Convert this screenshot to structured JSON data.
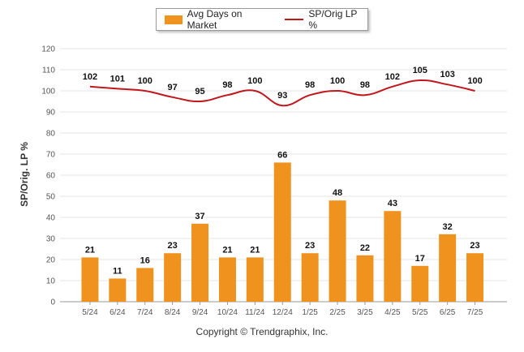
{
  "legend": {
    "bar_label": "Avg Days on Market",
    "line_label": "SP/Orig LP %"
  },
  "y_axis_label": "SP/Orig. LP %",
  "copyright": "Copyright © Trendgraphix, Inc.",
  "colors": {
    "bar": "#F0921E",
    "line": "#C0161C",
    "grid": "#e6e6e6",
    "axis": "#999999"
  },
  "chart_data": {
    "type": "bar",
    "categories": [
      "5/24",
      "6/24",
      "7/24",
      "8/24",
      "9/24",
      "10/24",
      "11/24",
      "12/24",
      "1/25",
      "2/25",
      "3/25",
      "4/25",
      "5/25",
      "6/25",
      "7/25"
    ],
    "series": [
      {
        "name": "Avg Days on Market",
        "type": "bar",
        "values": [
          21,
          11,
          16,
          23,
          37,
          21,
          21,
          66,
          23,
          48,
          22,
          43,
          17,
          32,
          23
        ]
      },
      {
        "name": "SP/Orig LP %",
        "type": "line",
        "values": [
          102,
          101,
          100,
          97,
          95,
          98,
          100,
          93,
          98,
          100,
          98,
          102,
          105,
          103,
          100
        ]
      }
    ],
    "yticks": [
      0,
      10,
      20,
      30,
      40,
      50,
      60,
      70,
      80,
      90,
      100,
      110,
      120
    ],
    "ylabel": "SP/Orig. LP %",
    "ylim": [
      0,
      120
    ],
    "grid": true,
    "legend_position": "top-center"
  }
}
